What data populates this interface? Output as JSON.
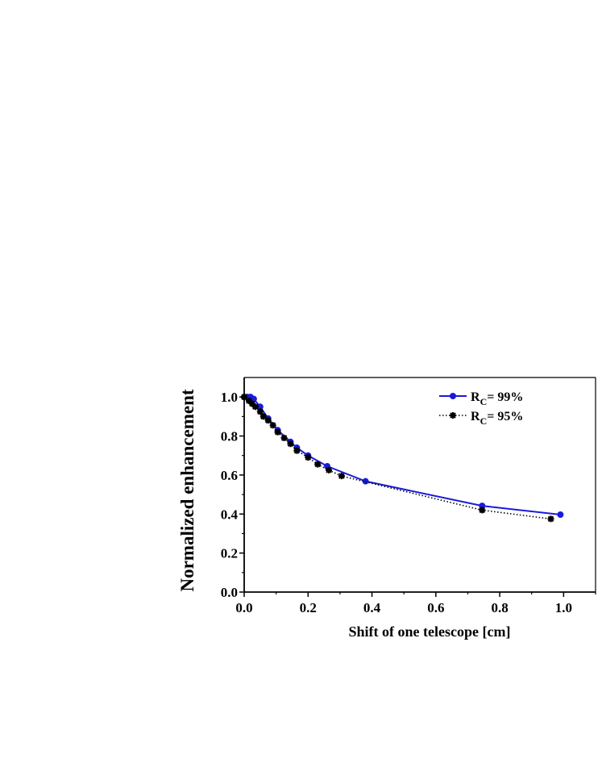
{
  "chart_data": {
    "type": "line",
    "xlabel": "Shift of one telescope [cm]",
    "ylabel": "Normalized enhancement",
    "xlim": [
      0.0,
      1.1
    ],
    "ylim": [
      0.0,
      1.1
    ],
    "xticks": [
      "0.0",
      "0.2",
      "0.4",
      "0.6",
      "0.8",
      "1.0"
    ],
    "yticks": [
      "0.0",
      "0.2",
      "0.4",
      "0.6",
      "0.8",
      "1.0"
    ],
    "grid": false,
    "legend_position": "top-right",
    "series": [
      {
        "name_main": "R",
        "name_sub": "C",
        "name_rest": "= 99%",
        "color": "#1a1adc",
        "line_style": "solid",
        "marker": "circle",
        "points": [
          [
            0.0,
            1.0
          ],
          [
            0.01,
            1.0
          ],
          [
            0.02,
            1.0
          ],
          [
            0.03,
            0.99
          ],
          [
            0.05,
            0.95
          ],
          [
            0.075,
            0.89
          ],
          [
            0.105,
            0.83
          ],
          [
            0.145,
            0.77
          ],
          [
            0.165,
            0.74
          ],
          [
            0.2,
            0.7
          ],
          [
            0.26,
            0.645
          ],
          [
            0.38,
            0.568
          ],
          [
            0.745,
            0.442
          ],
          [
            0.99,
            0.397
          ]
        ]
      },
      {
        "name_main": "R",
        "name_sub": "C",
        "name_rest": "= 95%",
        "color": "#000000",
        "line_style": "dotted",
        "marker": "star",
        "points": [
          [
            0.0,
            1.0
          ],
          [
            0.015,
            0.98
          ],
          [
            0.025,
            0.965
          ],
          [
            0.035,
            0.95
          ],
          [
            0.05,
            0.925
          ],
          [
            0.06,
            0.9
          ],
          [
            0.075,
            0.88
          ],
          [
            0.09,
            0.855
          ],
          [
            0.105,
            0.82
          ],
          [
            0.125,
            0.79
          ],
          [
            0.145,
            0.76
          ],
          [
            0.165,
            0.725
          ],
          [
            0.2,
            0.69
          ],
          [
            0.23,
            0.655
          ],
          [
            0.265,
            0.625
          ],
          [
            0.305,
            0.595
          ],
          [
            0.745,
            0.42
          ],
          [
            0.96,
            0.375
          ]
        ]
      }
    ]
  }
}
